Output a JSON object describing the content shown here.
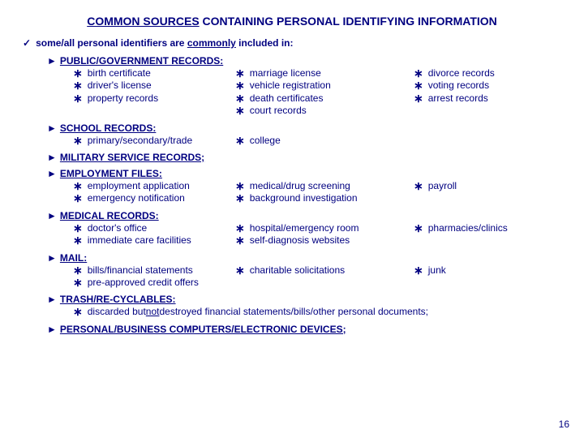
{
  "colors": {
    "text": "#000080",
    "background": "#ffffff"
  },
  "title": {
    "underlined": "COMMON SOURCES",
    "rest": " CONTAINING PERSONAL IDENTIFYING INFORMATION"
  },
  "intro": {
    "check": "✓",
    "prefix": "some/all personal identifiers are ",
    "underlined": "commonly",
    "suffix": " included in:"
  },
  "bullet": {
    "triangle": "►",
    "star": "∗"
  },
  "sections": {
    "public": {
      "title": "PUBLIC/GOVERNMENT RECORDS:",
      "col1": [
        "birth certificate",
        "driver's license",
        "property records"
      ],
      "col2": [
        "marriage license",
        "vehicle registration",
        "death certificates",
        "court records"
      ],
      "col3": [
        "divorce records",
        "voting records",
        "arrest records"
      ]
    },
    "school": {
      "title": "SCHOOL RECORDS:",
      "col1": [
        "primary/secondary/trade"
      ],
      "col2": [
        "college"
      ],
      "col3": []
    },
    "military": {
      "title": "MILITARY SERVICE RECORDS;"
    },
    "employment": {
      "title": "EMPLOYMENT FILES:",
      "col1": [
        "employment application",
        "emergency notification"
      ],
      "col2": [
        "medical/drug screening",
        "background investigation"
      ],
      "col3": [
        "payroll"
      ]
    },
    "medical": {
      "title": "MEDICAL RECORDS:",
      "col1": [
        "doctor's office",
        "immediate care facilities"
      ],
      "col2": [
        "hospital/emergency room",
        "self-diagnosis websites"
      ],
      "col3": [
        "pharmacies/clinics"
      ]
    },
    "mail": {
      "title": "MAIL:",
      "col1": [
        "bills/financial statements",
        "pre-approved credit offers"
      ],
      "col2": [
        "charitable solicitations"
      ],
      "col3": [
        "junk"
      ]
    },
    "trash": {
      "title": "TRASH/RE-CYCLABLES:",
      "text_pre": "discarded but ",
      "text_u": "not",
      "text_post": " destroyed financial statements/bills/other personal documents;"
    },
    "computers": {
      "title": "PERSONAL/BUSINESS COMPUTERS/ELECTRONIC DEVICES;"
    }
  },
  "page_number": "16"
}
